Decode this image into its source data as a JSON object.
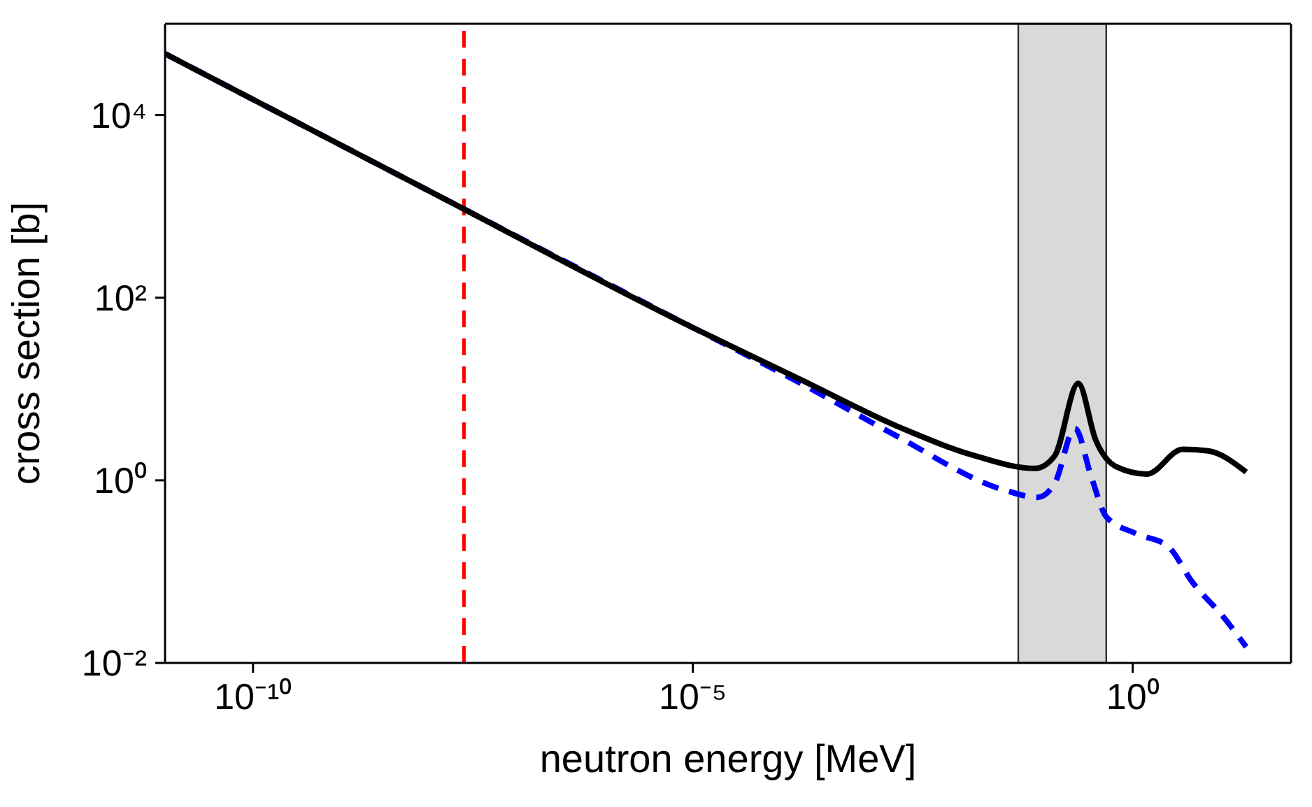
{
  "chart_data": {
    "type": "line",
    "xlabel": "neutron energy [MeV]",
    "ylabel": "cross section [b]",
    "log": "xy",
    "xlim": [
      1e-11,
      63
    ],
    "ylim": [
      0.01,
      100000
    ],
    "xticks": [
      {
        "value": 1e-10,
        "label": "10⁻¹⁰"
      },
      {
        "value": 1e-05,
        "label": "10⁻⁵"
      },
      {
        "value": 1,
        "label": "10⁰"
      }
    ],
    "yticks": [
      {
        "value": 0.01,
        "label": "10⁻²"
      },
      {
        "value": 1,
        "label": "10⁰"
      },
      {
        "value": 100,
        "label": "10²"
      },
      {
        "value": 10000,
        "label": "10⁴"
      }
    ],
    "marker": "none",
    "series": [
      {
        "color": "#0000ff",
        "line_style": "dashed",
        "x": [
          1e-11,
          1e-08,
          1e-05,
          0.00017,
          0.0019,
          0.035,
          0.083,
          0.13,
          0.22,
          0.34,
          0.5,
          1.1,
          2.5,
          4.8,
          10.7,
          19.5
        ],
        "values": [
          47000,
          1480,
          47,
          11.5,
          3.2,
          0.78,
          0.65,
          0.93,
          3.7,
          1.07,
          0.4,
          0.26,
          0.19,
          0.076,
          0.032,
          0.015
        ]
      },
      {
        "color": "#000000",
        "line_style": "solid",
        "x": [
          1e-11,
          1e-08,
          1e-05,
          0.00017,
          0.0024,
          0.016,
          0.078,
          0.13,
          0.24,
          0.38,
          0.65,
          1.45,
          3.7,
          7.2,
          19.5
        ],
        "values": [
          47000,
          1480,
          47,
          12.6,
          3.7,
          1.86,
          1.35,
          1.86,
          11.5,
          2.75,
          1.41,
          1.17,
          2.19,
          2.1,
          1.23
        ]
      }
    ],
    "ref_lines": [
      {
        "axis": "x",
        "value": 2.5e-08,
        "color": "#ff0000",
        "line_style": "dashed"
      }
    ],
    "bands": [
      {
        "axis": "x",
        "from": 0.05,
        "to": 0.5,
        "color": "#d9d9d9"
      }
    ]
  }
}
